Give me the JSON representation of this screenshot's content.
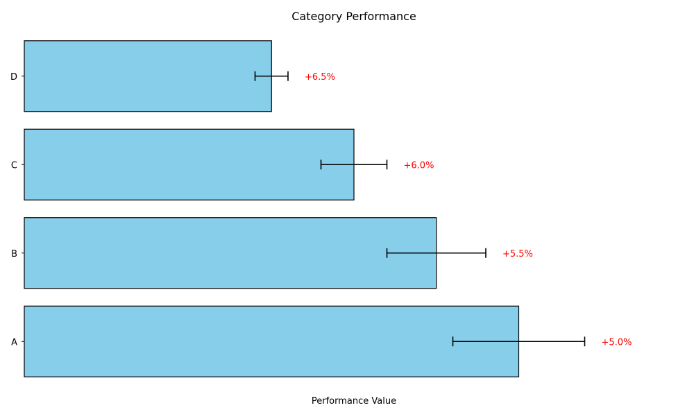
{
  "chart_data": {
    "type": "bar",
    "orientation": "horizontal",
    "title": "Category Performance",
    "xlabel": "Performance Value",
    "ylabel": "",
    "categories": [
      "A",
      "B",
      "C",
      "D"
    ],
    "values": [
      300,
      250,
      200,
      150
    ],
    "errors": [
      40,
      30,
      20,
      10
    ],
    "annotations": [
      "+5.0%",
      "+5.5%",
      "+6.0%",
      "+6.5%"
    ],
    "xlim": [
      0,
      400
    ],
    "x_ticks_visible": false,
    "grid": false,
    "legend": "none",
    "bar_color": "#87ceeb",
    "bar_edge_color": "#000000",
    "error_color": "#000000",
    "annotation_color": "#ff0000"
  }
}
